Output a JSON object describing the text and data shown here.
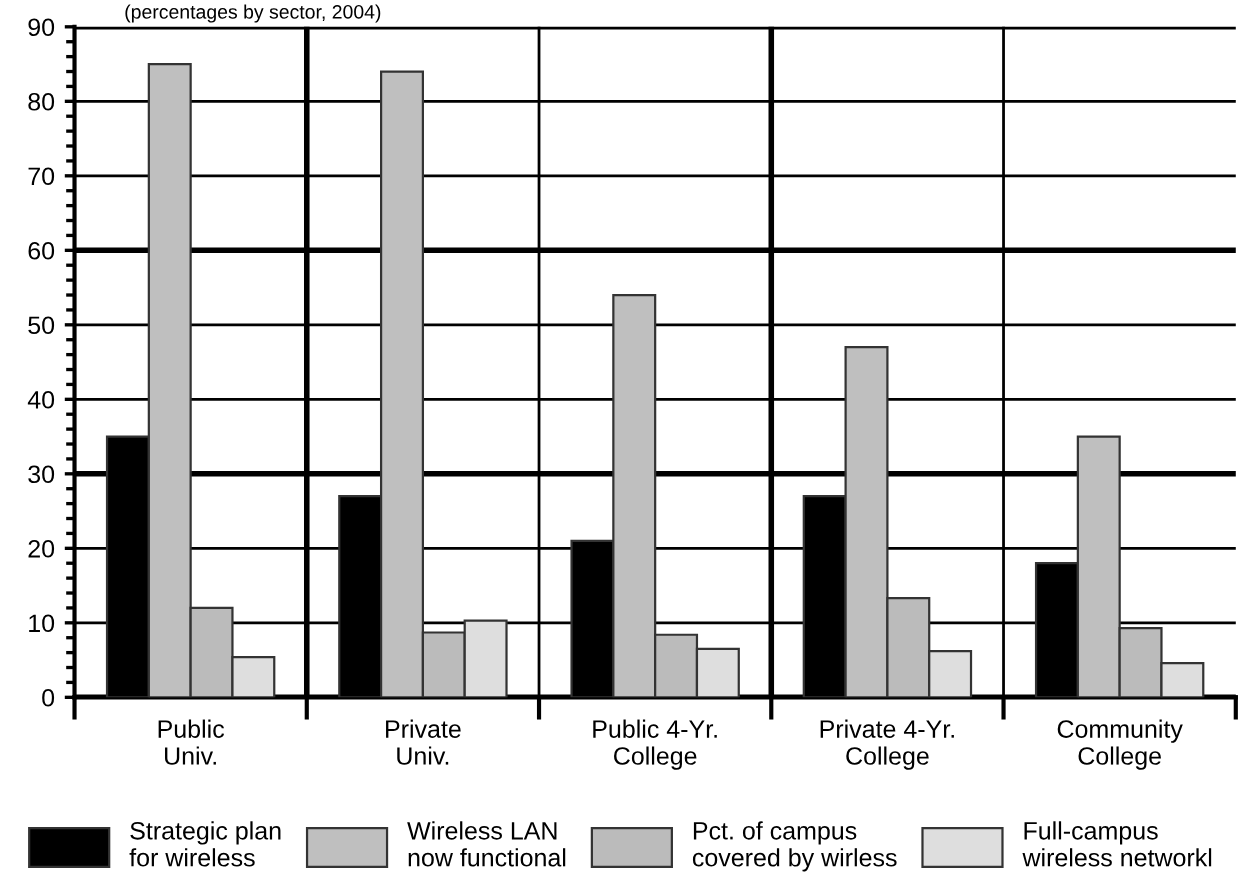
{
  "chart_data": {
    "type": "bar",
    "subtitle": "(percentages by sector, 2004)",
    "categories": [
      "Public\nUniv.",
      "Private\nUniv.",
      "Public 4-Yr.\nCollege",
      "Private 4-Yr.\nCollege",
      "Community\nCollege"
    ],
    "series": [
      {
        "name": "Strategic plan\nfor wireless",
        "color": "#000000",
        "values": [
          35,
          27,
          21,
          27,
          18
        ]
      },
      {
        "name": "Wireless LAN\nnow functional",
        "color": "#bfbfbf",
        "values": [
          85,
          84,
          54,
          47,
          35
        ]
      },
      {
        "name": "Pct. of campus\ncovered by wirless",
        "color": "#bbbbbb",
        "values": [
          12,
          8.7,
          8.4,
          13.3,
          9.3
        ]
      },
      {
        "name": "Full-campus\nwireless networkl",
        "color": "#dedede",
        "values": [
          5.4,
          10.3,
          6.5,
          6.2,
          4.6
        ]
      }
    ],
    "ylim": [
      0,
      90
    ],
    "yticks": [
      0,
      10,
      20,
      30,
      40,
      50,
      60,
      70,
      80,
      90
    ],
    "grid": true,
    "legend": "bottom"
  }
}
